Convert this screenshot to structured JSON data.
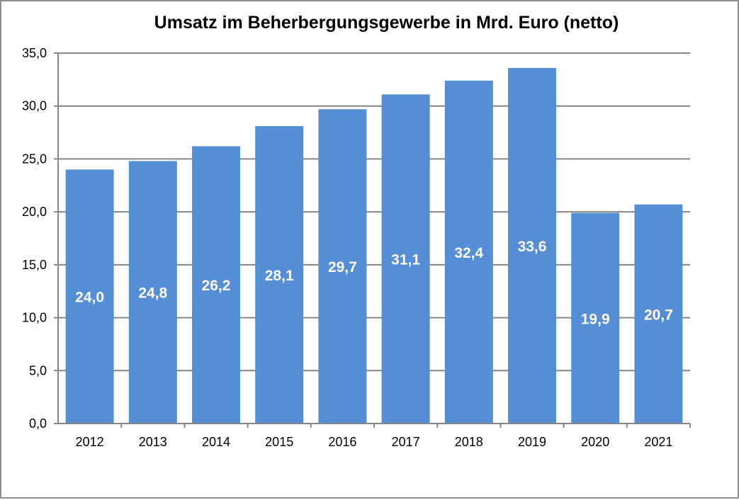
{
  "chart_data": {
    "type": "bar",
    "title": "Umsatz im Beherbergungsgewerbe in Mrd. Euro (netto)",
    "categories": [
      "2012",
      "2013",
      "2014",
      "2015",
      "2016",
      "2017",
      "2018",
      "2019",
      "2020",
      "2021"
    ],
    "values": [
      24.0,
      24.8,
      26.2,
      28.1,
      29.7,
      31.1,
      32.4,
      33.6,
      19.9,
      20.7
    ],
    "data_labels": [
      "24,0",
      "24,8",
      "26,2",
      "28,1",
      "29,7",
      "31,1",
      "32,4",
      "33,6",
      "19,9",
      "20,7"
    ],
    "ylim": [
      0,
      35
    ],
    "yticks": [
      "0,0",
      "5,0",
      "10,0",
      "15,0",
      "20,0",
      "25,0",
      "30,0",
      "35,0"
    ],
    "xlabel": "",
    "ylabel": "",
    "grid": true,
    "legend": "none",
    "colors": {
      "bar": "#558ED5",
      "grid": "#868686"
    }
  }
}
